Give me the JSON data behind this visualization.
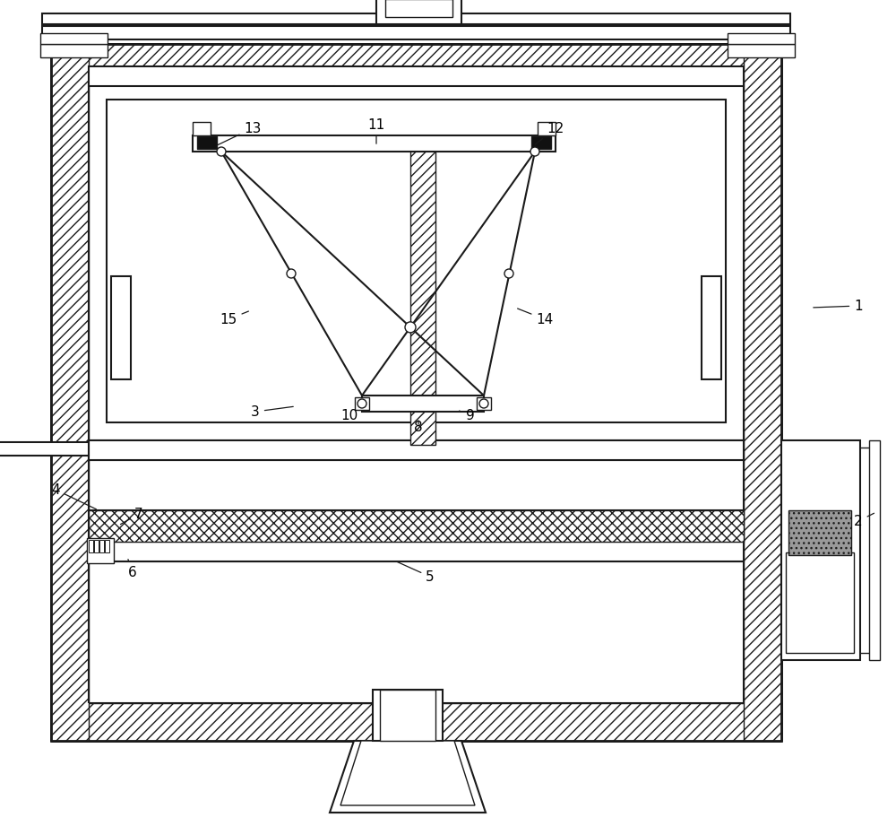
{
  "bg_color": "#ffffff",
  "line_color": "#1a1a1a",
  "figsize": [
    10.0,
    9.21
  ],
  "dpi": 100
}
